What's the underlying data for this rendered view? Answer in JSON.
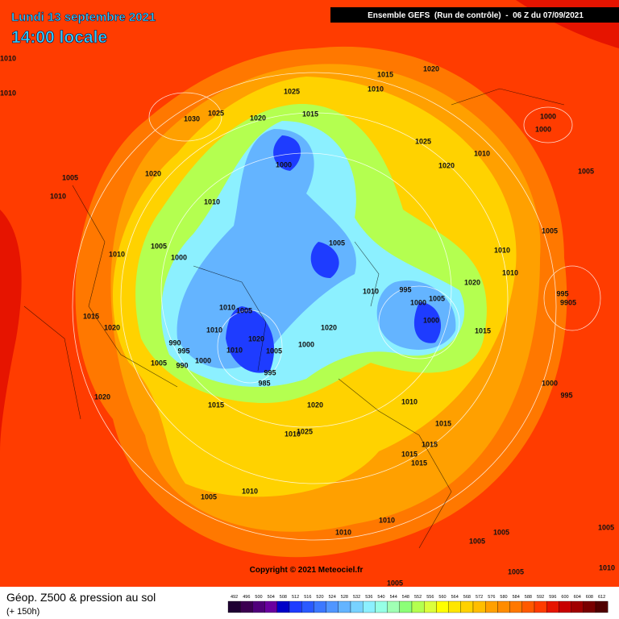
{
  "header": {
    "date": "Lundi 13 septembre 2021",
    "time": "14:00 locale",
    "run": "Ensemble GEFS  (Run de contrôle)  -  06 Z du 07/09/2021"
  },
  "map": {
    "isobar_labels": [
      "1010",
      "1010",
      "1030",
      "1025",
      "1020",
      "1025",
      "1015",
      "1015",
      "1010",
      "1020",
      "1000",
      "1000",
      "1025",
      "1010",
      "1020",
      "1005",
      "1005",
      "1020",
      "1010",
      "1000",
      "1010",
      "1005",
      "1005",
      "1010",
      "1000",
      "1005",
      "1010",
      "1010",
      "1020",
      "995",
      "1010",
      "1005",
      "1000",
      "995",
      "9905",
      "1015",
      "1020",
      "1010",
      "1005",
      "1000",
      "1020",
      "1015",
      "1010",
      "1020",
      "990",
      "995",
      "1010",
      "1005",
      "1000",
      "1000",
      "1005",
      "990",
      "995",
      "985",
      "1000",
      "995",
      "1020",
      "1015",
      "1010",
      "1020",
      "1015",
      "1010",
      "1025",
      "1015",
      "1015",
      "1015",
      "1005",
      "1010",
      "1010",
      "1010",
      "1005",
      "1005",
      "1005",
      "1005",
      "1005",
      "1010"
    ],
    "copyright": "Copyright © 2021 Meteociel.fr"
  },
  "footer": {
    "title": "Géop. Z500 & pression au sol",
    "lead": "(+ 150h)",
    "scale": {
      "values": [
        492,
        496,
        500,
        504,
        508,
        512,
        516,
        520,
        524,
        528,
        532,
        536,
        540,
        544,
        548,
        552,
        556,
        560,
        564,
        568,
        572,
        576,
        580,
        584,
        588,
        592,
        596,
        600,
        604,
        608,
        612
      ],
      "colors": [
        "#1e0032",
        "#3c0050",
        "#50007a",
        "#6a00a0",
        "#0000c8",
        "#1e3cff",
        "#2a5aff",
        "#3c78ff",
        "#5096ff",
        "#64b4ff",
        "#78d2ff",
        "#8cf0ff",
        "#96ffe6",
        "#a0ffb4",
        "#8cff78",
        "#b4ff50",
        "#dcff3c",
        "#ffff00",
        "#ffe600",
        "#ffd200",
        "#ffbe00",
        "#ffa000",
        "#ff8c00",
        "#ff7800",
        "#ff5a00",
        "#ff3c00",
        "#e61400",
        "#c80000",
        "#a00000",
        "#780000",
        "#500000"
      ]
    }
  }
}
